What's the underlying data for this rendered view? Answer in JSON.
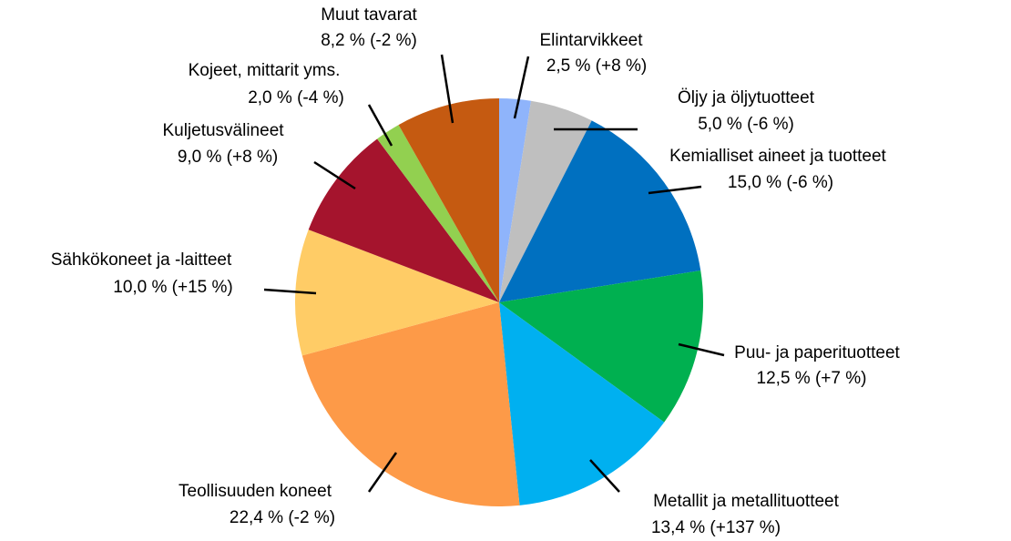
{
  "chart_data": {
    "type": "pie",
    "categories": [
      "Elintarvikkeet",
      "Öljy ja öljytuotteet",
      "Kemialliset aineet ja tuotteet",
      "Puu- ja paperituotteet",
      "Metallit ja metallituotteet",
      "Teollisuuden koneet",
      "Sähkökoneet ja -laitteet",
      "Kuljetusvälineet",
      "Kojeet, mittarit yms.",
      "Muut tavarat"
    ],
    "values": [
      2.5,
      5.0,
      15.0,
      12.5,
      13.4,
      22.4,
      10.0,
      9.0,
      2.0,
      8.2
    ],
    "value_labels": [
      "2,5 % (+8 %)",
      "5,0 % (-6 %)",
      "15,0 % (-6 %)",
      "12,5 % (+7 %)",
      "13,4 % (+137 %)",
      "22,4 % (-2 %)",
      "10,0 % (+15 %)",
      "9,0 % (+8 %)",
      "2,0 % (-4 %)",
      "8,2 % (-2 %)"
    ],
    "colors": [
      "#8fb4fb",
      "#bfbfbf",
      "#0070c0",
      "#00b050",
      "#00b0f0",
      "#fd9a48",
      "#ffcc66",
      "#a5142d",
      "#92d050",
      "#c55a11"
    ]
  }
}
